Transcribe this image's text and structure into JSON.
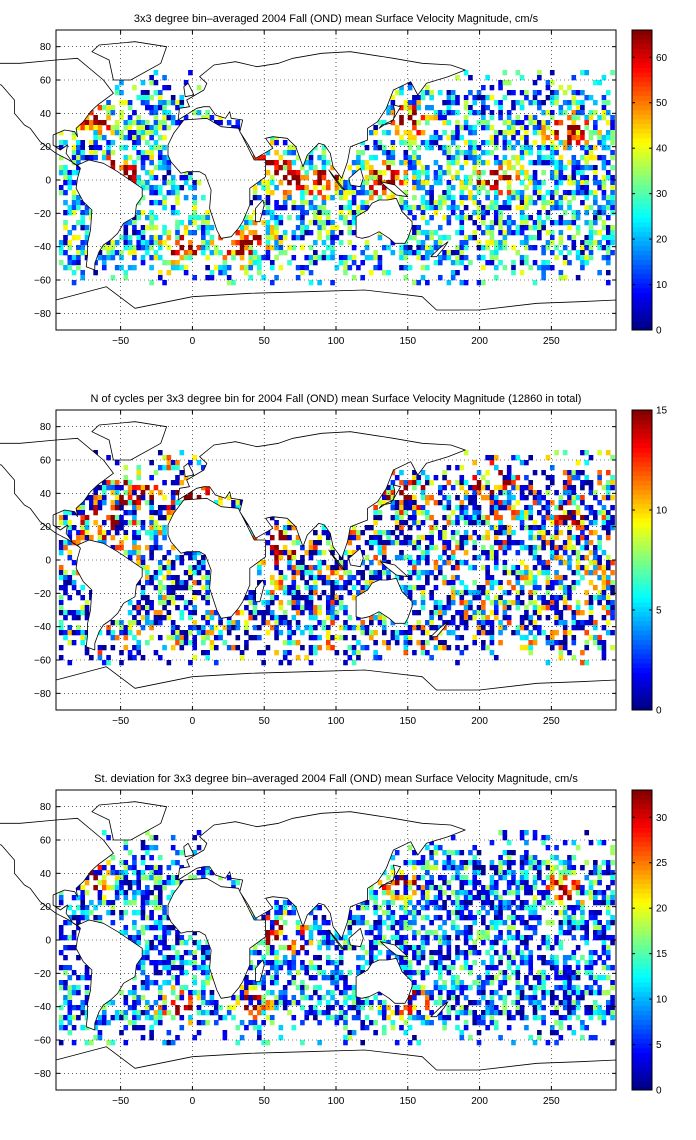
{
  "chart_data": [
    {
      "type": "heatmap",
      "title": "3x3 degree bin–averaged 2004 Fall (OND) mean Surface Velocity Magnitude, cm/s",
      "xlabel": "",
      "ylabel": "",
      "xlim": [
        -95,
        295
      ],
      "ylim": [
        -90,
        90
      ],
      "xticks": [
        -50,
        0,
        50,
        100,
        150,
        200,
        250
      ],
      "yticks": [
        -80,
        -60,
        -40,
        -20,
        0,
        20,
        40,
        60,
        80
      ],
      "grid": true,
      "bin_size_deg": 3,
      "colorbar": {
        "range": [
          0,
          66
        ],
        "ticks": [
          0,
          10,
          20,
          30,
          40,
          50,
          60
        ],
        "colormap": "jet"
      },
      "seed": 11,
      "hotspots": [
        [
          -70,
          37
        ],
        [
          -10,
          -42
        ],
        [
          30,
          -40
        ],
        [
          55,
          8
        ],
        [
          70,
          0
        ],
        [
          150,
          35
        ],
        [
          135,
          0
        ],
        [
          210,
          0
        ],
        [
          262,
          30
        ],
        [
          -50,
          5
        ],
        [
          90,
          0
        ],
        [
          40,
          -35
        ]
      ],
      "base": 0.32,
      "hot_gain": 0.75,
      "noise": 0.32
    },
    {
      "type": "heatmap",
      "title": "N of cycles per 3x3 degree bin for 2004 Fall (OND) mean Surface Velocity Magnitude (12860 in total)",
      "xlabel": "",
      "ylabel": "",
      "xlim": [
        -95,
        295
      ],
      "ylim": [
        -90,
        90
      ],
      "xticks": [
        -50,
        0,
        50,
        100,
        150,
        200,
        250
      ],
      "yticks": [
        -80,
        -60,
        -40,
        -20,
        0,
        20,
        40,
        60,
        80
      ],
      "grid": true,
      "bin_size_deg": 3,
      "total_cycles": 12860,
      "colorbar": {
        "range": [
          0,
          15
        ],
        "ticks": [
          0,
          5,
          10,
          15
        ],
        "colormap": "jet"
      },
      "seed": 23,
      "hotspots": [
        [
          60,
          8
        ],
        [
          150,
          38
        ],
        [
          210,
          45
        ],
        [
          -40,
          40
        ],
        [
          -60,
          25
        ],
        [
          0,
          40
        ],
        [
          265,
          25
        ],
        [
          40,
          10
        ]
      ],
      "base": 0.38,
      "hot_gain": 0.65,
      "noise": 0.45
    },
    {
      "type": "heatmap",
      "title": "St. deviation for 3x3 degree bin–averaged 2004 Fall (OND) mean Surface Velocity Magnitude, cm/s",
      "xlabel": "",
      "ylabel": "",
      "xlim": [
        -95,
        295
      ],
      "ylim": [
        -90,
        90
      ],
      "xticks": [
        -50,
        0,
        50,
        100,
        150,
        200,
        250
      ],
      "yticks": [
        -80,
        -60,
        -40,
        -20,
        0,
        20,
        40,
        60,
        80
      ],
      "grid": true,
      "bin_size_deg": 3,
      "colorbar": {
        "range": [
          0,
          33
        ],
        "ticks": [
          0,
          5,
          10,
          15,
          20,
          25,
          30
        ],
        "colormap": "jet"
      },
      "seed": 37,
      "hotspots": [
        [
          -70,
          38
        ],
        [
          55,
          5
        ],
        [
          70,
          0
        ],
        [
          40,
          -38
        ],
        [
          145,
          35
        ],
        [
          150,
          -38
        ],
        [
          260,
          30
        ],
        [
          -10,
          -40
        ]
      ],
      "base": 0.26,
      "hot_gain": 0.8,
      "noise": 0.3
    }
  ]
}
